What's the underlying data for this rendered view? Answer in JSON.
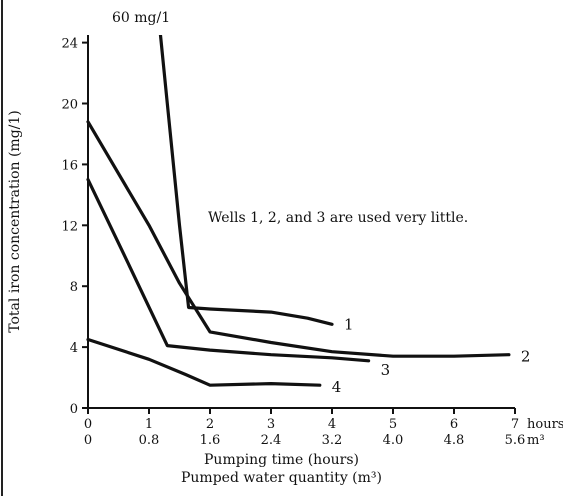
{
  "chart_data": {
    "type": "line",
    "ylabel": "Total iron concentration (mg/1)",
    "xlabel": "Pumping time (hours)",
    "x2label": "Pumped water quantity (m³)",
    "x_unit": "hours",
    "x2_unit": "m³",
    "xlim": [
      0,
      7
    ],
    "ylim": [
      0,
      24.5
    ],
    "x_ticks": [
      "0",
      "1",
      "2",
      "3",
      "4",
      "5",
      "6",
      "7"
    ],
    "x2_ticks": [
      "0",
      "0.8",
      "1.6",
      "2.4",
      "3.2",
      "4.0",
      "4.8",
      "5.6"
    ],
    "y_ticks": [
      "0",
      "4",
      "8",
      "12",
      "16",
      "20",
      "24"
    ],
    "top_annotation": "60 mg/1",
    "note": "Wells 1, 2, and 3 are used very little.",
    "series": [
      {
        "name": "1",
        "points": [
          [
            1.15,
            26.0
          ],
          [
            1.3,
            20.0
          ],
          [
            1.5,
            12.0
          ],
          [
            1.65,
            6.6
          ],
          [
            2.0,
            6.5
          ],
          [
            3.0,
            6.3
          ],
          [
            3.6,
            5.9
          ],
          [
            4.0,
            5.5
          ]
        ]
      },
      {
        "name": "2",
        "points": [
          [
            0,
            18.8
          ],
          [
            1.0,
            12.0
          ],
          [
            1.5,
            8.2
          ],
          [
            2.0,
            5.0
          ],
          [
            3.0,
            4.3
          ],
          [
            4.0,
            3.7
          ],
          [
            5.0,
            3.4
          ],
          [
            6.0,
            3.4
          ],
          [
            6.9,
            3.5
          ]
        ]
      },
      {
        "name": "3",
        "points": [
          [
            0,
            15.0
          ],
          [
            0.6,
            10.0
          ],
          [
            1.3,
            4.1
          ],
          [
            2.0,
            3.8
          ],
          [
            3.0,
            3.5
          ],
          [
            4.0,
            3.3
          ],
          [
            4.6,
            3.1
          ]
        ]
      },
      {
        "name": "4",
        "points": [
          [
            0,
            4.5
          ],
          [
            1.0,
            3.2
          ],
          [
            1.6,
            2.2
          ],
          [
            2.0,
            1.5
          ],
          [
            3.0,
            1.6
          ],
          [
            3.8,
            1.5
          ]
        ]
      }
    ]
  }
}
